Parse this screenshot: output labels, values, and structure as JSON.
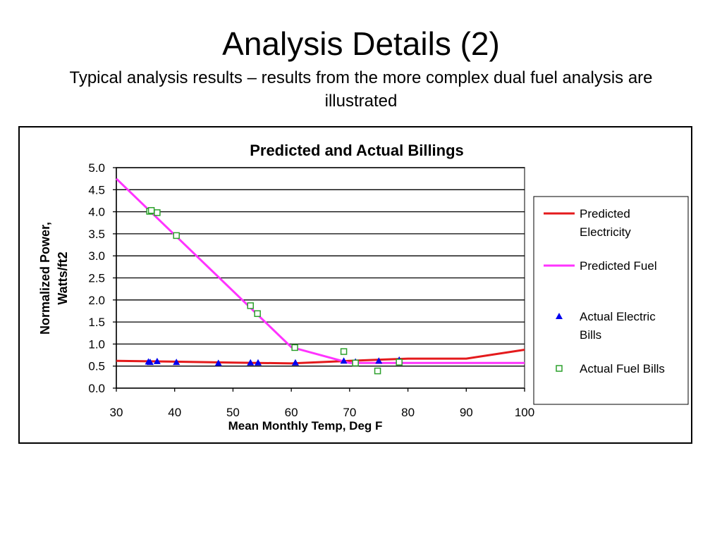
{
  "slide": {
    "title": "Analysis Details (2)",
    "subtitle": "Typical analysis results – results from the more complex dual fuel analysis are illustrated"
  },
  "chart_data": {
    "type": "line",
    "title": "Predicted and Actual Billings",
    "xlabel": "Mean Monthly Temp, Deg F",
    "ylabel": "Normalized Power, Watts/ft2",
    "xlim": [
      30,
      100
    ],
    "ylim": [
      0,
      5
    ],
    "x_ticks": [
      "30",
      "40",
      "50",
      "60",
      "70",
      "80",
      "90",
      "100"
    ],
    "y_ticks": [
      "0.0",
      "0.5",
      "1.0",
      "1.5",
      "2.0",
      "2.5",
      "3.0",
      "3.5",
      "4.0",
      "4.5",
      "5.0"
    ],
    "grid": "horizontal",
    "legend_position": "right",
    "series": [
      {
        "name": "Predicted Electricity",
        "kind": "line",
        "color": "#e41a1c",
        "x": [
          30,
          40,
          50,
          60,
          70,
          80,
          90,
          100
        ],
        "y": [
          0.62,
          0.6,
          0.58,
          0.56,
          0.62,
          0.67,
          0.67,
          0.87
        ]
      },
      {
        "name": "Predicted Fuel",
        "kind": "line",
        "color": "#ff33ff",
        "x": [
          30,
          60,
          70,
          100
        ],
        "y": [
          4.75,
          0.93,
          0.57,
          0.57
        ]
      },
      {
        "name": "Actual Electric Bills",
        "kind": "triangle",
        "color": "#0000ee",
        "x": [
          35.5,
          35.8,
          37,
          40.3,
          47.5,
          53,
          54.3,
          60.7,
          69,
          71,
          75,
          78.5
        ],
        "y": [
          0.6,
          0.59,
          0.61,
          0.59,
          0.57,
          0.58,
          0.58,
          0.58,
          0.62,
          0.6,
          0.62,
          0.64
        ]
      },
      {
        "name": "Actual Fuel Bills",
        "kind": "square",
        "color": "#2ca02c",
        "x": [
          35.7,
          36,
          37,
          40.3,
          53,
          54.2,
          60.6,
          69,
          71,
          74.8,
          78.5
        ],
        "y": [
          4.01,
          4.03,
          3.98,
          3.46,
          1.87,
          1.69,
          0.92,
          0.83,
          0.57,
          0.39,
          0.59
        ]
      }
    ]
  }
}
